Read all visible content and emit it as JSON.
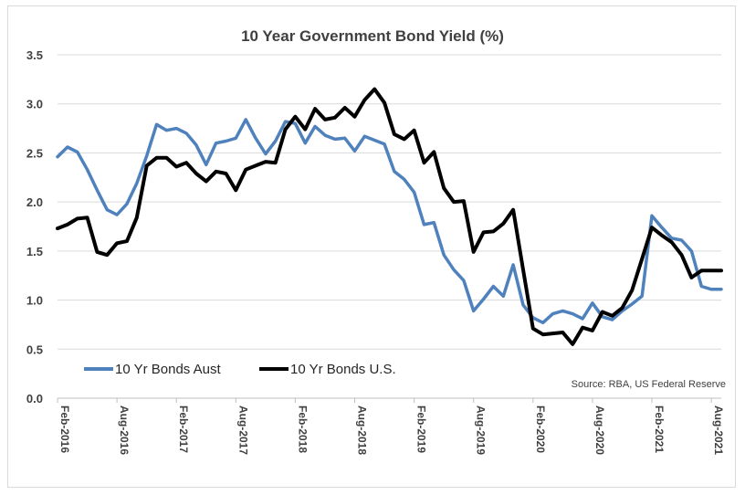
{
  "chart_data": {
    "type": "line",
    "title": "10 Year Government Bond Yield (%)",
    "xlabel": "",
    "ylabel": "",
    "ylim": [
      0,
      3.5
    ],
    "yticks": [
      "0.0",
      "0.5",
      "1.0",
      "1.5",
      "2.0",
      "2.5",
      "3.0",
      "3.5"
    ],
    "xticks": [
      "Feb-2016",
      "Aug-2016",
      "Feb-2017",
      "Aug-2017",
      "Feb-2018",
      "Aug-2018",
      "Feb-2019",
      "Aug-2019",
      "Feb-2020",
      "Aug-2020",
      "Feb-2021",
      "Aug-2021"
    ],
    "x": [
      "2016-02",
      "2016-03",
      "2016-04",
      "2016-05",
      "2016-06",
      "2016-07",
      "2016-08",
      "2016-09",
      "2016-10",
      "2016-11",
      "2016-12",
      "2017-01",
      "2017-02",
      "2017-03",
      "2017-04",
      "2017-05",
      "2017-06",
      "2017-07",
      "2017-08",
      "2017-09",
      "2017-10",
      "2017-11",
      "2017-12",
      "2018-01",
      "2018-02",
      "2018-03",
      "2018-04",
      "2018-05",
      "2018-06",
      "2018-07",
      "2018-08",
      "2018-09",
      "2018-10",
      "2018-11",
      "2018-12",
      "2019-01",
      "2019-02",
      "2019-03",
      "2019-04",
      "2019-05",
      "2019-06",
      "2019-07",
      "2019-08",
      "2019-09",
      "2019-10",
      "2019-11",
      "2019-12",
      "2020-01",
      "2020-02",
      "2020-03",
      "2020-04",
      "2020-05",
      "2020-06",
      "2020-07",
      "2020-08",
      "2020-09",
      "2020-10",
      "2020-11",
      "2020-12",
      "2021-01",
      "2021-02",
      "2021-03",
      "2021-04",
      "2021-05",
      "2021-06",
      "2021-07",
      "2021-08",
      "2021-09"
    ],
    "grid": true,
    "legend_position": "bottom-left",
    "series": [
      {
        "name": "10 Yr Bonds Aust",
        "color": "#4f81bd",
        "values": [
          2.46,
          2.56,
          2.51,
          2.33,
          2.12,
          1.92,
          1.87,
          1.98,
          2.19,
          2.47,
          2.79,
          2.73,
          2.75,
          2.7,
          2.58,
          2.38,
          2.6,
          2.62,
          2.65,
          2.84,
          2.65,
          2.49,
          2.62,
          2.82,
          2.8,
          2.6,
          2.77,
          2.68,
          2.64,
          2.65,
          2.52,
          2.67,
          2.63,
          2.59,
          2.31,
          2.23,
          2.1,
          1.77,
          1.79,
          1.46,
          1.31,
          1.2,
          0.89,
          1.01,
          1.14,
          1.04,
          1.36,
          0.95,
          0.82,
          0.77,
          0.86,
          0.89,
          0.86,
          0.81,
          0.97,
          0.83,
          0.8,
          0.89,
          0.96,
          1.04,
          1.86,
          1.74,
          1.63,
          1.61,
          1.5,
          1.14,
          1.11,
          1.11
        ]
      },
      {
        "name": "10 Yr Bonds U.S.",
        "color": "#000000",
        "values": [
          1.73,
          1.77,
          1.83,
          1.84,
          1.49,
          1.46,
          1.58,
          1.6,
          1.84,
          2.37,
          2.45,
          2.45,
          2.36,
          2.4,
          2.29,
          2.21,
          2.31,
          2.29,
          2.12,
          2.33,
          2.37,
          2.41,
          2.4,
          2.74,
          2.87,
          2.74,
          2.95,
          2.84,
          2.86,
          2.96,
          2.87,
          3.04,
          3.15,
          3.01,
          2.69,
          2.64,
          2.73,
          2.4,
          2.51,
          2.14,
          2.0,
          2.01,
          1.49,
          1.69,
          1.7,
          1.78,
          1.92,
          1.31,
          0.71,
          0.65,
          0.66,
          0.67,
          0.55,
          0.72,
          0.69,
          0.88,
          0.84,
          0.92,
          1.1,
          1.42,
          1.74,
          1.66,
          1.59,
          1.46,
          1.23,
          1.3,
          1.3,
          1.3
        ]
      }
    ],
    "source": "Source: RBA, US Federal Reserve"
  }
}
